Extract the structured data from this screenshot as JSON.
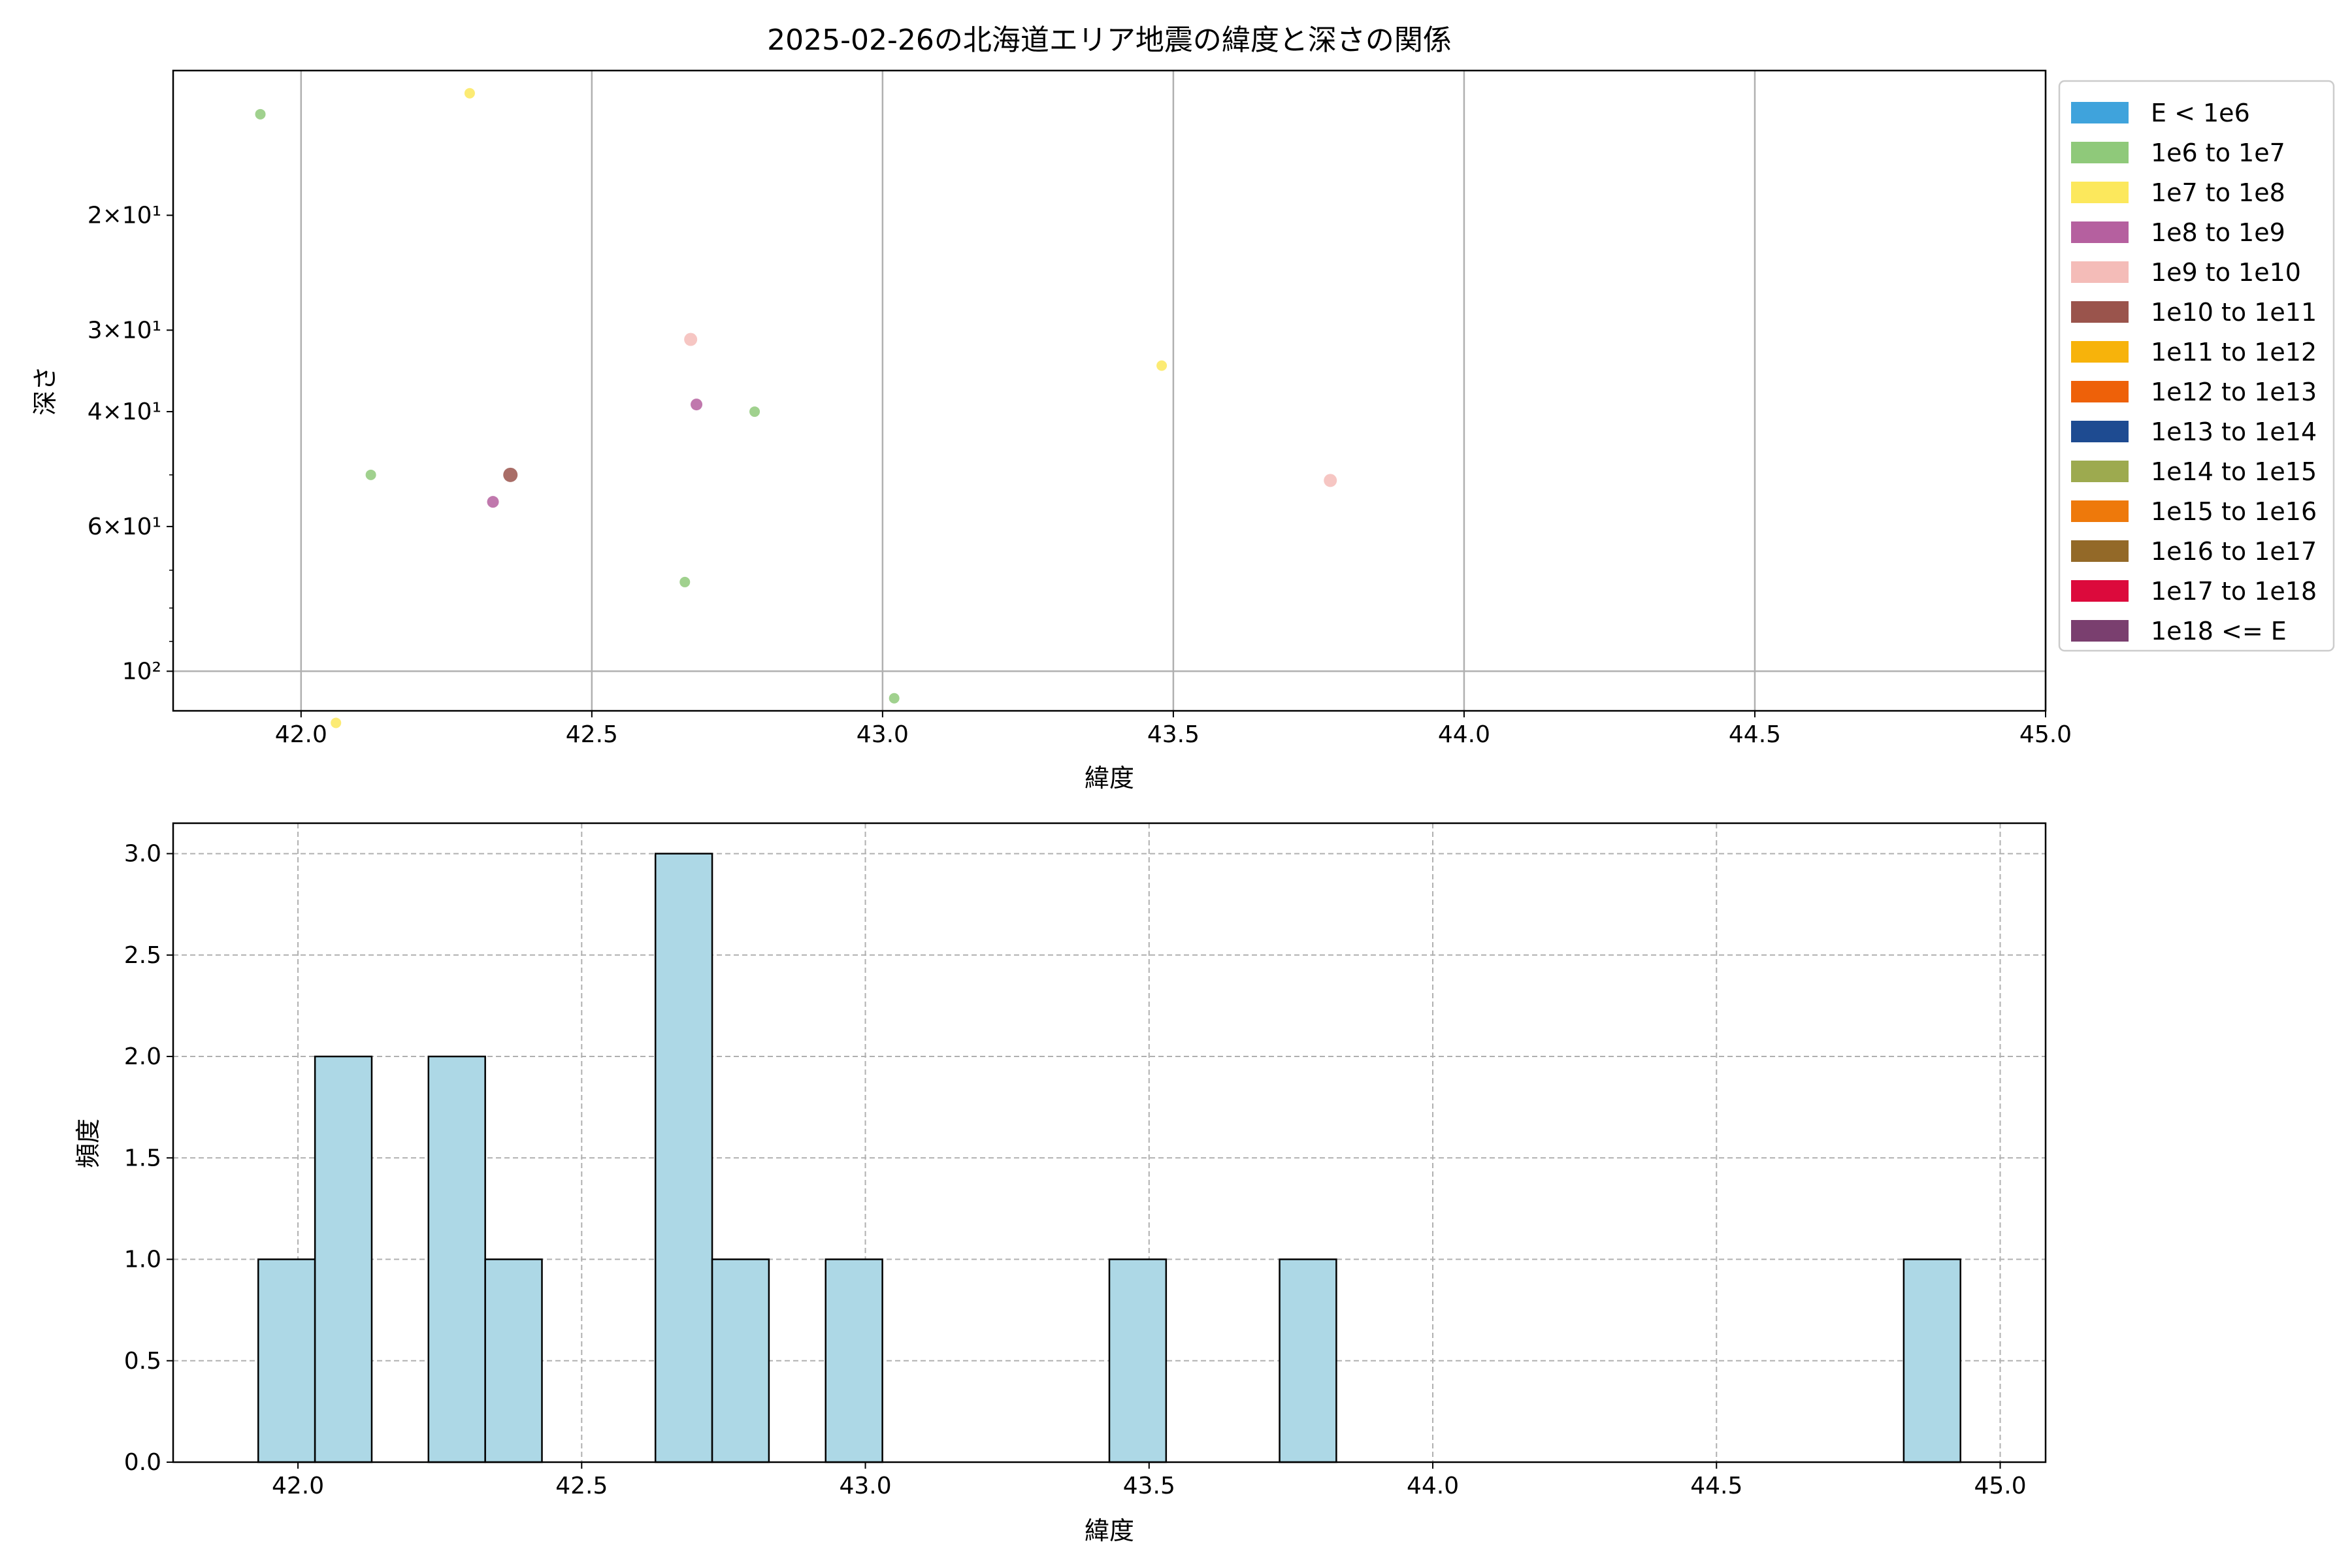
{
  "chart_data": [
    {
      "type": "scatter",
      "title": "2025-02-26の北海道エリア地震の緯度と深さの関係",
      "xlabel": "緯度",
      "ylabel": "深さ",
      "xlim": [
        41.78,
        45.0
      ],
      "ylim": [
        115,
        12
      ],
      "yscale": "log",
      "y_inverted": true,
      "grid": true,
      "xticks": [
        "42.0",
        "42.5",
        "43.0",
        "43.5",
        "44.0",
        "44.5",
        "45.0"
      ],
      "xtick_values": [
        42.0,
        42.5,
        43.0,
        43.5,
        44.0,
        44.5,
        45.0
      ],
      "yticks": [
        {
          "value": 20,
          "label": "2×10¹"
        },
        {
          "value": 30,
          "label": "3×10¹"
        },
        {
          "value": 40,
          "label": "4×10¹"
        },
        {
          "value": 60,
          "label": "6×10¹"
        },
        {
          "value": 100,
          "label": "10²"
        }
      ],
      "legend_position": "outside-right",
      "legend": [
        {
          "label": "E < 1e6",
          "color": "#3fa3dc"
        },
        {
          "label": "1e6 to 1e7",
          "color": "#8fc97a"
        },
        {
          "label": "1e7 to 1e8",
          "color": "#fce85c"
        },
        {
          "label": "1e8 to 1e9",
          "color": "#b5609f"
        },
        {
          "label": "1e9 to 1e10",
          "color": "#f4bcb8"
        },
        {
          "label": "1e10 to 1e11",
          "color": "#9a544c"
        },
        {
          "label": "1e11 to 1e12",
          "color": "#f7b30b"
        },
        {
          "label": "1e12 to 1e13",
          "color": "#ee6109"
        },
        {
          "label": "1e13 to 1e14",
          "color": "#1e4b91"
        },
        {
          "label": "1e14 to 1e15",
          "color": "#9daa4f"
        },
        {
          "label": "1e15 to 1e16",
          "color": "#ee790b"
        },
        {
          "label": "1e16 to 1e17",
          "color": "#936928"
        },
        {
          "label": "1e17 to 1e18",
          "color": "#dc0a3c"
        },
        {
          "label": "1e18 <= E",
          "color": "#7a3f6f"
        }
      ],
      "points": [
        {
          "x": 41.93,
          "y": 14,
          "class": 1
        },
        {
          "x": 42.29,
          "y": 13,
          "class": 2
        },
        {
          "x": 42.67,
          "y": 31,
          "class": 4
        },
        {
          "x": 43.48,
          "y": 34,
          "class": 2
        },
        {
          "x": 42.68,
          "y": 39,
          "class": 3
        },
        {
          "x": 42.78,
          "y": 40,
          "class": 1
        },
        {
          "x": 42.12,
          "y": 50,
          "class": 1
        },
        {
          "x": 42.36,
          "y": 50,
          "class": 5
        },
        {
          "x": 42.33,
          "y": 55,
          "class": 3
        },
        {
          "x": 43.77,
          "y": 51,
          "class": 4
        },
        {
          "x": 42.66,
          "y": 73,
          "class": 1
        },
        {
          "x": 42.06,
          "y": 120,
          "class": 2
        },
        {
          "x": 43.02,
          "y": 110,
          "class": 1
        }
      ]
    },
    {
      "type": "bar",
      "subtype": "histogram",
      "xlabel": "緯度",
      "ylabel": "頻度",
      "xlim": [
        41.78,
        45.08
      ],
      "ylim": [
        0,
        3.15
      ],
      "grid": true,
      "grid_style": "dashed",
      "bar_color": "#add8e6",
      "bar_edge_color": "#000000",
      "xticks": [
        "42.0",
        "42.5",
        "43.0",
        "43.5",
        "44.0",
        "44.5",
        "45.0"
      ],
      "xtick_values": [
        42.0,
        42.5,
        43.0,
        43.5,
        44.0,
        44.5,
        45.0
      ],
      "yticks": [
        "0.0",
        "0.5",
        "1.0",
        "1.5",
        "2.0",
        "2.5",
        "3.0"
      ],
      "ytick_values": [
        0.0,
        0.5,
        1.0,
        1.5,
        2.0,
        2.5,
        3.0
      ],
      "bins": [
        {
          "start": 41.93,
          "end": 42.03,
          "count": 1
        },
        {
          "start": 42.03,
          "end": 42.13,
          "count": 2
        },
        {
          "start": 42.23,
          "end": 42.33,
          "count": 2
        },
        {
          "start": 42.33,
          "end": 42.43,
          "count": 1
        },
        {
          "start": 42.63,
          "end": 42.73,
          "count": 3
        },
        {
          "start": 42.73,
          "end": 42.83,
          "count": 1
        },
        {
          "start": 42.93,
          "end": 43.03,
          "count": 1
        },
        {
          "start": 43.43,
          "end": 43.53,
          "count": 1
        },
        {
          "start": 43.73,
          "end": 43.83,
          "count": 1
        },
        {
          "start": 44.83,
          "end": 44.93,
          "count": 1
        }
      ]
    }
  ]
}
